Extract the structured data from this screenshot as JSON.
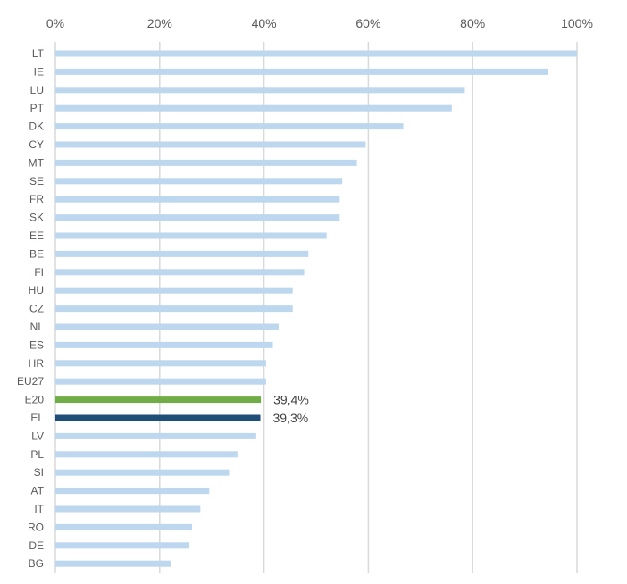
{
  "chart_data": {
    "type": "bar",
    "orientation": "horizontal",
    "title": "",
    "xlabel": "",
    "ylabel": "",
    "xlim": [
      0,
      100
    ],
    "x_ticks": [
      "0%",
      "20%",
      "40%",
      "60%",
      "80%",
      "100%"
    ],
    "x_tick_values": [
      0,
      20,
      40,
      60,
      80,
      100
    ],
    "axis_position": "top",
    "grid": true,
    "legend": "none",
    "categories": [
      "LT",
      "IE",
      "LU",
      "PT",
      "DK",
      "CY",
      "MT",
      "SE",
      "FR",
      "SK",
      "EE",
      "BE",
      "FI",
      "HU",
      "CZ",
      "NL",
      "ES",
      "HR",
      "EU27",
      "E20",
      "EL",
      "LV",
      "PL",
      "SI",
      "AT",
      "IT",
      "RO",
      "DE",
      "BG"
    ],
    "values": [
      100,
      94.5,
      78.5,
      76,
      66.7,
      59.5,
      57.8,
      55,
      54.5,
      54.5,
      52,
      48.5,
      47.7,
      45.5,
      45.5,
      42.8,
      41.7,
      40.4,
      40.4,
      39.4,
      39.3,
      38.5,
      34.9,
      33.3,
      29.5,
      27.8,
      26.2,
      25.7,
      22.2
    ],
    "highlight": {
      "E20": "#70ad47",
      "EL": "#1f4e79"
    },
    "data_labels": {
      "E20": "39,4%",
      "EL": "39,3%"
    },
    "colors": {
      "default_bar": "#bdd7ee",
      "grid": "#d9d9d9",
      "axis_text": "#595959"
    }
  }
}
